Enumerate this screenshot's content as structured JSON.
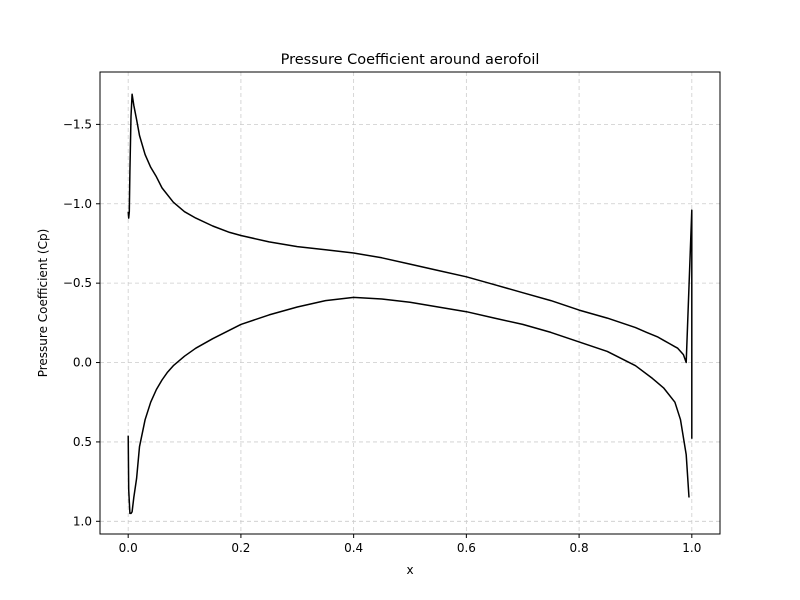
{
  "chart_data": {
    "type": "line",
    "title": "Pressure Coefficient around aerofoil",
    "xlabel": "x",
    "ylabel": "Pressure Coefficient (Cp)",
    "xlim": [
      -0.05,
      1.05
    ],
    "ylim": [
      -1.83,
      1.08
    ],
    "y_inverted": true,
    "grid": true,
    "x_ticks": [
      0.0,
      0.2,
      0.4,
      0.6,
      0.8,
      1.0
    ],
    "x_tick_labels": [
      "0.0",
      "0.2",
      "0.4",
      "0.6",
      "0.8",
      "1.0"
    ],
    "y_ticks": [
      -1.5,
      -1.0,
      -0.5,
      0.0,
      0.5,
      1.0
    ],
    "y_tick_labels": [
      "−1.5",
      "−1.0",
      "−0.5",
      "0.0",
      "0.5",
      "1.0"
    ],
    "colors": {
      "line": "#000000",
      "grid": "#cccccc"
    },
    "series": [
      {
        "x": [
          1.0,
          1.0,
          0.99,
          0.985,
          0.98,
          0.975,
          0.97,
          0.96,
          0.95,
          0.94,
          0.92,
          0.9,
          0.85,
          0.8,
          0.75,
          0.7,
          0.65,
          0.6,
          0.55,
          0.5,
          0.45,
          0.4,
          0.35,
          0.3,
          0.25,
          0.2,
          0.18,
          0.15,
          0.12,
          0.1,
          0.08,
          0.06,
          0.05,
          0.04,
          0.03,
          0.02,
          0.015,
          0.01,
          0.007,
          0.005,
          0.003,
          0.002,
          0.001,
          0.0
        ],
        "y": [
          0.48,
          -0.96,
          0.0,
          -0.05,
          -0.07,
          -0.09,
          -0.1,
          -0.12,
          -0.14,
          -0.16,
          -0.19,
          -0.22,
          -0.28,
          -0.33,
          -0.39,
          -0.44,
          -0.49,
          -0.54,
          -0.58,
          -0.62,
          -0.66,
          -0.69,
          -0.71,
          -0.73,
          -0.76,
          -0.8,
          -0.82,
          -0.86,
          -0.91,
          -0.95,
          -1.01,
          -1.1,
          -1.17,
          -1.23,
          -1.31,
          -1.43,
          -1.53,
          -1.62,
          -1.69,
          -1.55,
          -1.2,
          -0.95,
          -0.91,
          -0.95
        ]
      },
      {
        "x": [
          0.0,
          0.001,
          0.003,
          0.005,
          0.007,
          0.01,
          0.015,
          0.02,
          0.03,
          0.04,
          0.05,
          0.06,
          0.07,
          0.08,
          0.1,
          0.12,
          0.15,
          0.2,
          0.25,
          0.3,
          0.35,
          0.4,
          0.45,
          0.5,
          0.55,
          0.6,
          0.65,
          0.7,
          0.75,
          0.8,
          0.85,
          0.9,
          0.93,
          0.95,
          0.97,
          0.98,
          0.99,
          0.995
        ],
        "y": [
          0.46,
          0.8,
          0.95,
          0.95,
          0.94,
          0.85,
          0.73,
          0.53,
          0.36,
          0.25,
          0.17,
          0.11,
          0.06,
          0.02,
          -0.04,
          -0.09,
          -0.15,
          -0.24,
          -0.3,
          -0.35,
          -0.39,
          -0.41,
          -0.4,
          -0.38,
          -0.35,
          -0.32,
          -0.28,
          -0.24,
          -0.19,
          -0.13,
          -0.07,
          0.02,
          0.1,
          0.16,
          0.25,
          0.36,
          0.58,
          0.85
        ]
      }
    ]
  }
}
